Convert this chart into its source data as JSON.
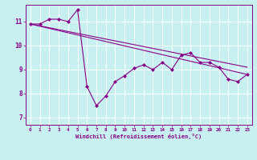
{
  "xlabel": "Windchill (Refroidissement éolien,°C)",
  "background_color": "#c8f0f0",
  "line_color": "#880088",
  "grid_color": "#ffffff",
  "xlim": [
    -0.5,
    23.5
  ],
  "ylim": [
    6.7,
    11.7
  ],
  "yticks": [
    7,
    8,
    9,
    10,
    11
  ],
  "xticks": [
    0,
    1,
    2,
    3,
    4,
    5,
    6,
    7,
    8,
    9,
    10,
    11,
    12,
    13,
    14,
    15,
    16,
    17,
    18,
    19,
    20,
    21,
    22,
    23
  ],
  "font_color": "#880088",
  "series1": [
    10.9,
    10.9,
    11.1,
    11.1,
    11.0,
    11.5,
    8.3,
    7.5,
    7.9,
    8.5,
    8.75,
    9.05,
    9.2,
    9.0,
    9.3,
    9.0,
    9.6,
    9.7,
    9.3,
    9.3,
    9.1,
    8.6,
    8.5,
    8.8
  ],
  "series2_x": [
    0,
    23
  ],
  "series2_y": [
    10.9,
    8.8
  ],
  "series3_x": [
    0,
    23
  ],
  "series3_y": [
    10.9,
    9.1
  ],
  "figsize": [
    3.2,
    2.0
  ],
  "dpi": 100
}
